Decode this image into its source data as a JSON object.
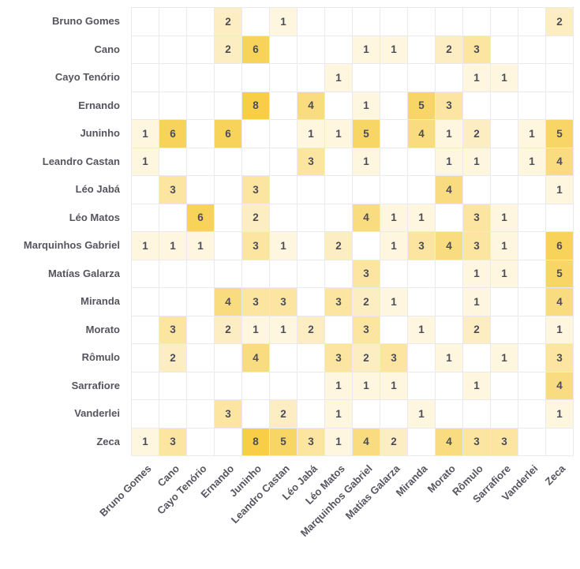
{
  "chart_data": {
    "type": "heatmap",
    "title": "",
    "xlabel": "",
    "ylabel": "",
    "legend": "none",
    "grid_on": true,
    "categories": [
      "Bruno Gomes",
      "Cano",
      "Cayo Tenório",
      "Ernando",
      "Juninho",
      "Leandro Castan",
      "Léo Jabá",
      "Léo Matos",
      "Marquinhos Gabriel",
      "Matías Galarza",
      "Miranda",
      "Morato",
      "Rômulo",
      "Sarrafiore",
      "Vanderlei",
      "Zeca"
    ],
    "matrix": [
      [
        null,
        null,
        null,
        2,
        null,
        1,
        null,
        null,
        null,
        null,
        null,
        null,
        null,
        null,
        null,
        2
      ],
      [
        null,
        null,
        null,
        2,
        6,
        null,
        null,
        null,
        1,
        1,
        null,
        2,
        3,
        null,
        null,
        null
      ],
      [
        null,
        null,
        null,
        null,
        null,
        null,
        null,
        1,
        null,
        null,
        null,
        null,
        1,
        1,
        null,
        null
      ],
      [
        null,
        null,
        null,
        null,
        8,
        null,
        4,
        null,
        1,
        null,
        5,
        3,
        null,
        null,
        null,
        null
      ],
      [
        1,
        6,
        null,
        6,
        null,
        null,
        1,
        1,
        5,
        null,
        4,
        1,
        2,
        null,
        1,
        5
      ],
      [
        1,
        null,
        null,
        null,
        null,
        null,
        3,
        null,
        1,
        null,
        null,
        1,
        1,
        null,
        1,
        4
      ],
      [
        null,
        3,
        null,
        null,
        3,
        null,
        null,
        null,
        null,
        null,
        null,
        4,
        null,
        null,
        null,
        1
      ],
      [
        null,
        null,
        6,
        null,
        2,
        null,
        null,
        null,
        4,
        1,
        1,
        null,
        3,
        1,
        null,
        null
      ],
      [
        1,
        1,
        1,
        null,
        3,
        1,
        null,
        2,
        null,
        1,
        3,
        4,
        3,
        1,
        null,
        6
      ],
      [
        null,
        null,
        null,
        null,
        null,
        null,
        null,
        null,
        3,
        null,
        null,
        null,
        1,
        1,
        null,
        5
      ],
      [
        null,
        null,
        null,
        4,
        3,
        3,
        null,
        3,
        2,
        1,
        null,
        null,
        1,
        null,
        null,
        4
      ],
      [
        null,
        3,
        null,
        2,
        1,
        1,
        2,
        null,
        3,
        null,
        1,
        null,
        2,
        null,
        null,
        1
      ],
      [
        null,
        2,
        null,
        null,
        4,
        null,
        null,
        3,
        2,
        3,
        null,
        1,
        null,
        1,
        null,
        3
      ],
      [
        null,
        null,
        null,
        null,
        null,
        null,
        null,
        1,
        1,
        1,
        null,
        null,
        1,
        null,
        null,
        4
      ],
      [
        null,
        null,
        null,
        3,
        null,
        2,
        null,
        1,
        null,
        null,
        1,
        null,
        null,
        null,
        null,
        1
      ],
      [
        1,
        3,
        null,
        null,
        8,
        5,
        3,
        1,
        4,
        2,
        null,
        4,
        3,
        3,
        null,
        null
      ]
    ],
    "value_range": [
      1,
      8
    ],
    "color_scale": {
      "1": "#FEF6DF",
      "2": "#FCEDC3",
      "3": "#FBE5A1",
      "4": "#FADC80",
      "5": "#F8D666",
      "6": "#F8D35A",
      "7": "#F8D050",
      "8": "#F7CE46"
    },
    "empty_cell_color": "#FFFFFF",
    "grid_line_color": "#E9E9F0",
    "value_text_color": "#4C4C59",
    "label_text_color": "#55555F"
  }
}
